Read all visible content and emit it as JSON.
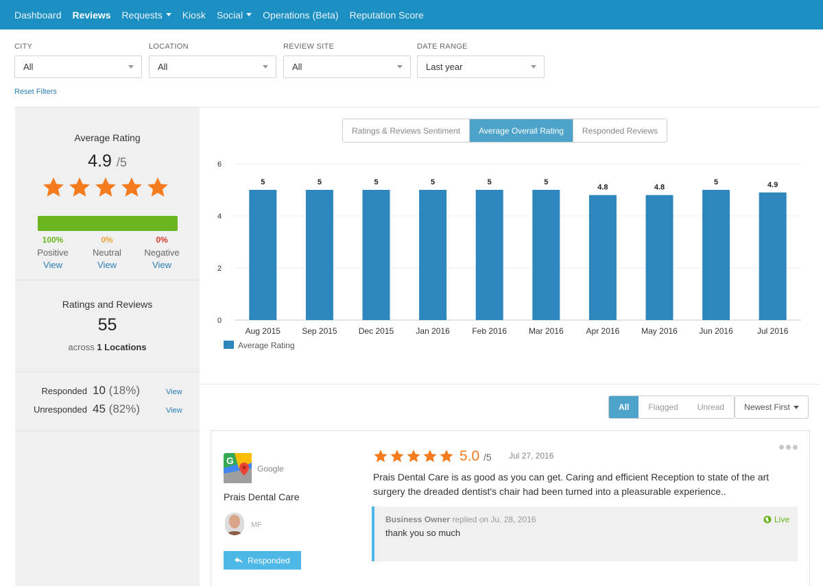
{
  "nav": {
    "items": [
      {
        "label": "Dashboard",
        "dropdown": false,
        "active": false
      },
      {
        "label": "Reviews",
        "dropdown": false,
        "active": true
      },
      {
        "label": "Requests",
        "dropdown": true,
        "active": false
      },
      {
        "label": "Kiosk",
        "dropdown": false,
        "active": false
      },
      {
        "label": "Social",
        "dropdown": true,
        "active": false
      },
      {
        "label": "Operations (Beta)",
        "dropdown": false,
        "active": false
      },
      {
        "label": "Reputation Score",
        "dropdown": false,
        "active": false
      }
    ]
  },
  "filters": {
    "city": {
      "label": "CITY",
      "value": "All"
    },
    "location": {
      "label": "LOCATION",
      "value": "All"
    },
    "review_site": {
      "label": "REVIEW SITE",
      "value": "All"
    },
    "date_range": {
      "label": "DATE RANGE",
      "value": "Last year"
    },
    "reset_label": "Reset Filters"
  },
  "summary": {
    "average_title": "Average Rating",
    "average_value": "4.9",
    "average_max": "/5",
    "star_count": 5,
    "sentiment": [
      {
        "pct": "100%",
        "label": "Positive",
        "view": "View",
        "color": "#6ab41e"
      },
      {
        "pct": "0%",
        "label": "Neutral",
        "view": "View",
        "color": "#e8a33a"
      },
      {
        "pct": "0%",
        "label": "Negative",
        "view": "View",
        "color": "#d33a2c"
      }
    ],
    "ratings_title": "Ratings and Reviews",
    "ratings_count": "55",
    "across_prefix": "across",
    "locations_count": "1 Locations",
    "responded": {
      "label": "Responded",
      "count": "10",
      "pct": "(18%)",
      "view": "View"
    },
    "unresponded": {
      "label": "Unresponded",
      "count": "45",
      "pct": "(82%)",
      "view": "View"
    }
  },
  "chart_tabs": [
    {
      "label": "Ratings & Reviews Sentiment",
      "active": false
    },
    {
      "label": "Average Overall Rating",
      "active": true
    },
    {
      "label": "Responded Reviews",
      "active": false
    }
  ],
  "chart_data": {
    "type": "bar",
    "categories": [
      "Aug 2015",
      "Sep 2015",
      "Dec 2015",
      "Jan 2016",
      "Feb 2016",
      "Mar 2016",
      "Apr 2016",
      "May 2016",
      "Jun 2016",
      "Jul 2016"
    ],
    "values": [
      5,
      5,
      5,
      5,
      5,
      5,
      4.8,
      4.8,
      5,
      4.9
    ],
    "value_labels": [
      "5",
      "5",
      "5",
      "5",
      "5",
      "5",
      "4.8",
      "4.8",
      "5",
      "4.9"
    ],
    "y_ticks": [
      "0",
      "2",
      "4",
      "6"
    ],
    "ylim": [
      0,
      6
    ],
    "series_name": "Average Rating",
    "color": "#2d87bc",
    "legend": "bottom-left",
    "grid": true
  },
  "review_tabs": [
    {
      "label": "All",
      "active": true
    },
    {
      "label": "Flagged",
      "active": false
    },
    {
      "label": "Unread",
      "active": false
    }
  ],
  "sort_label": "Newest First",
  "review": {
    "source": "Google",
    "business": "Prais Dental Care",
    "reviewer_initials": "MF",
    "responded_label": "Responded",
    "stars": 5,
    "score": "5.0",
    "score_max": "/5",
    "date": "Jul 27, 2016",
    "text": "Prais Dental Care is as good as you can get. Caring and efficient Reception to state of the art surgery the dreaded dentist's chair had been turned into a pleasurable experience..",
    "reply_author": "Business Owner",
    "reply_meta": " replied on Ju. 28, 2016",
    "reply_text": "thank you so much",
    "reply_status": "Live"
  },
  "colors": {
    "nav_bg": "#1c8fc2",
    "star": "#f47c1e",
    "accent": "#4da3c9",
    "responded_btn": "#4db7e6"
  }
}
